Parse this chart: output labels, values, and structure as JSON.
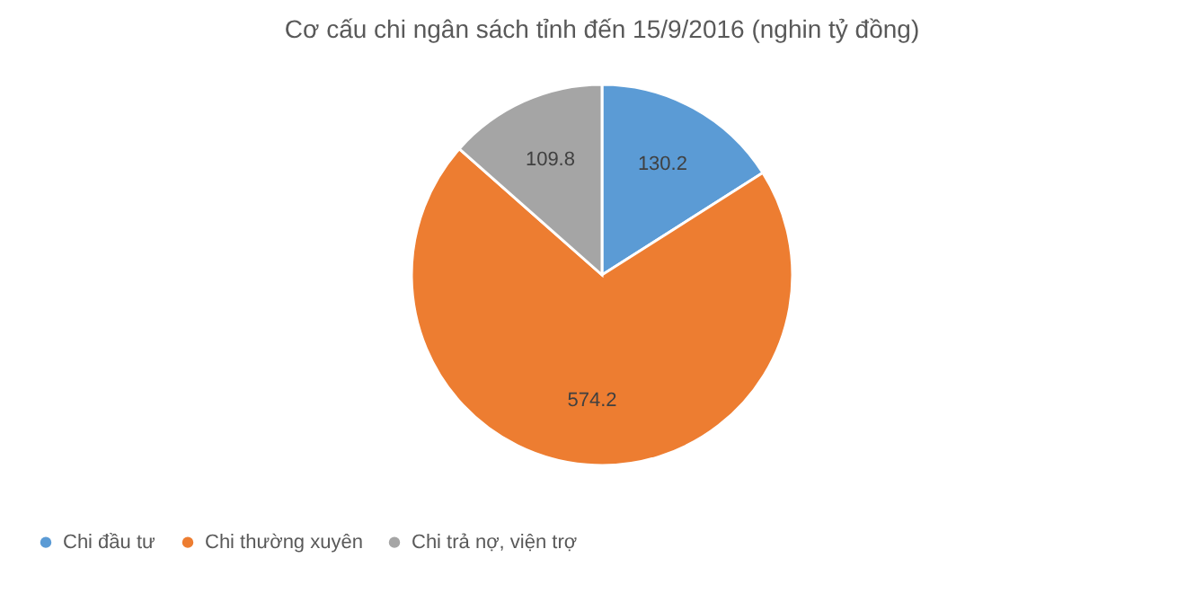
{
  "chart_data": {
    "type": "pie",
    "title": "Cơ cấu chi ngân sách tỉnh đến 15/9/2016 (nghin tỷ đồng)",
    "categories": [
      "Chi đầu tư",
      "Chi thường xuyên",
      "Chi trả nợ, viện trợ"
    ],
    "values": [
      130.2,
      574.2,
      109.8
    ],
    "colors": [
      "#5b9bd5",
      "#ed7d31",
      "#a5a5a5"
    ],
    "data_labels": true,
    "legend": "bottom"
  }
}
